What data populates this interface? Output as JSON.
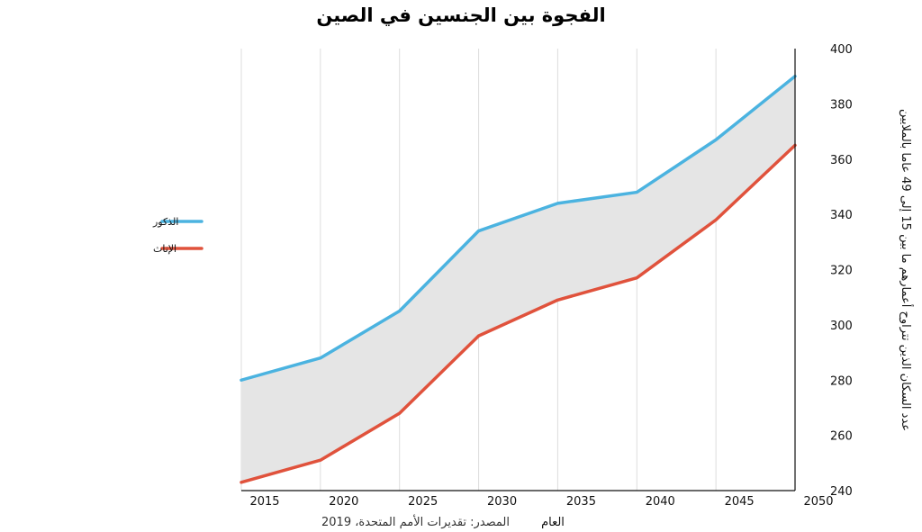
{
  "chart_data": {
    "type": "area",
    "title": "الفجوة بين الجنسين في الصين",
    "xlabel": "العام",
    "ylabel": "عدد السكان الذين تتراوح أعمارهم ما بين 15 إلى 49 عاما بالملايين",
    "source": "المصدر: تقديرات الأمم المتحدة، 2019",
    "x": [
      2015,
      2020,
      2025,
      2030,
      2035,
      2040,
      2045,
      2050
    ],
    "xlim": [
      2015,
      2050
    ],
    "ylim": [
      240,
      400
    ],
    "yticks": [
      240,
      260,
      280,
      300,
      320,
      340,
      360,
      380,
      400
    ],
    "grid": "vertical",
    "legend_position": "left",
    "fill_between_series": true,
    "series": [
      {
        "name": "الذكور",
        "color": "#4bb3e0",
        "values": [
          280,
          288,
          305,
          334,
          344,
          348,
          367,
          390
        ]
      },
      {
        "name": "الإناث",
        "color": "#e0523c",
        "values": [
          243,
          251,
          268,
          296,
          309,
          317,
          338,
          365
        ]
      }
    ],
    "fill_color": "#e5e5e5",
    "grid_color": "#dddddd",
    "axis_color": "#111111"
  }
}
